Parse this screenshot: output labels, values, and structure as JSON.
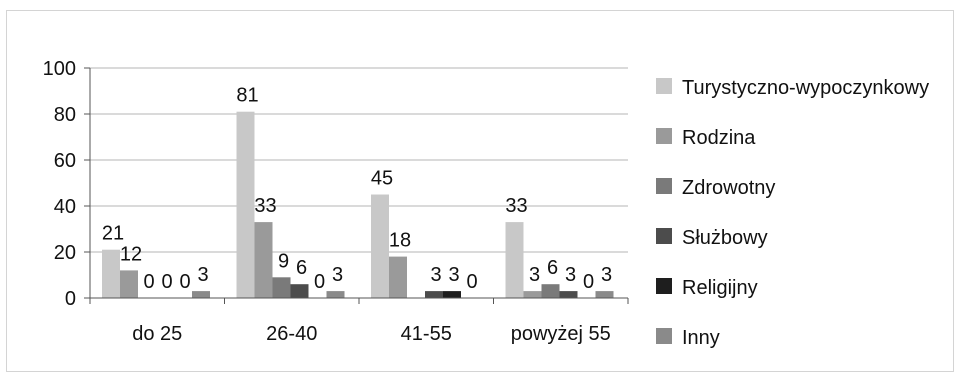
{
  "chart_data": {
    "type": "bar",
    "categories": [
      "do 25",
      "26-40",
      "41-55",
      "powyżej 55"
    ],
    "series": [
      {
        "name": "Turystyczno-wypoczynkowy",
        "values": [
          21,
          81,
          45,
          33
        ],
        "labels": [
          "21",
          "81",
          "45",
          "33"
        ]
      },
      {
        "name": "Rodzina",
        "values": [
          12,
          33,
          18,
          3
        ],
        "labels": [
          "12",
          "33",
          "18",
          "3"
        ]
      },
      {
        "name": "Zdrowotny",
        "values": [
          0,
          9,
          0,
          6
        ],
        "labels": [
          "0",
          "9",
          "",
          "6"
        ]
      },
      {
        "name": "Służbowy",
        "values": [
          0,
          6,
          3,
          3
        ],
        "labels": [
          "0",
          "6",
          "3",
          "3"
        ]
      },
      {
        "name": "Religijny",
        "values": [
          0,
          0,
          3,
          0
        ],
        "labels": [
          "0",
          "0",
          "3",
          "0"
        ]
      },
      {
        "name": "Inny",
        "values": [
          3,
          3,
          0,
          3
        ],
        "labels": [
          "3",
          "3",
          "0",
          "3"
        ]
      }
    ],
    "colors": [
      "#c8c8c8",
      "#9a9a9a",
      "#7a7a7a",
      "#4c4c4c",
      "#1e1e1e",
      "#8a8a8a"
    ],
    "yticks": [
      "0",
      "20",
      "40",
      "60",
      "80",
      "100"
    ],
    "ylim": [
      0,
      100
    ],
    "grid": true,
    "legend": "right"
  }
}
